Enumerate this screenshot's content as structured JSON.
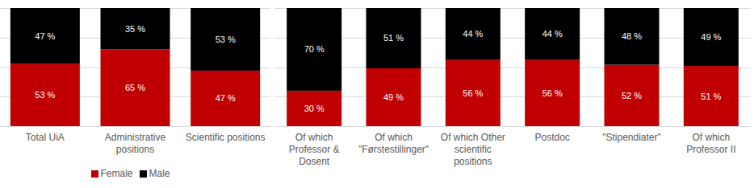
{
  "chart_data": [
    {
      "type": "bar",
      "stacked": true,
      "data_labels": true,
      "grid": true,
      "tick_labels": false,
      "legend": "bottom",
      "categories": [
        "Total UiA",
        "Administrative positions",
        "Scientific positions"
      ],
      "ylim": [
        0,
        100
      ],
      "yticks": [
        0,
        25,
        50,
        75,
        100
      ],
      "series": [
        {
          "name": "Female",
          "color": "#c00000",
          "values": [
            53,
            65,
            47
          ],
          "value_labels": [
            "53 %",
            "65 %",
            "47 %"
          ]
        },
        {
          "name": "Male",
          "color": "#000000",
          "values": [
            47,
            35,
            53
          ],
          "value_labels": [
            "47 %",
            "35 %",
            "53 %"
          ]
        }
      ]
    },
    {
      "type": "bar",
      "stacked": true,
      "data_labels": true,
      "grid": true,
      "tick_labels": false,
      "categories": [
        "Of which Professor & Dosent",
        "Of which \"Førstestillinger\"",
        "Of which Other scientific positions",
        "Postdoc",
        "\"Stipendiater\"",
        "Of which Professor II"
      ],
      "ylim": [
        0,
        100
      ],
      "yticks": [
        0,
        25,
        50,
        75,
        100
      ],
      "series": [
        {
          "color": "#c00000",
          "values": [
            30,
            49,
            56,
            56,
            52,
            51
          ],
          "value_labels": [
            "30 %",
            "49 %",
            "56 %",
            "56 %",
            "52 %",
            "51 %"
          ]
        },
        {
          "color": "#000000",
          "values": [
            70,
            51,
            44,
            44,
            48,
            49
          ],
          "value_labels": [
            "70 %",
            "51 %",
            "44 %",
            "44 %",
            "48 %",
            "49 %"
          ]
        }
      ]
    }
  ]
}
